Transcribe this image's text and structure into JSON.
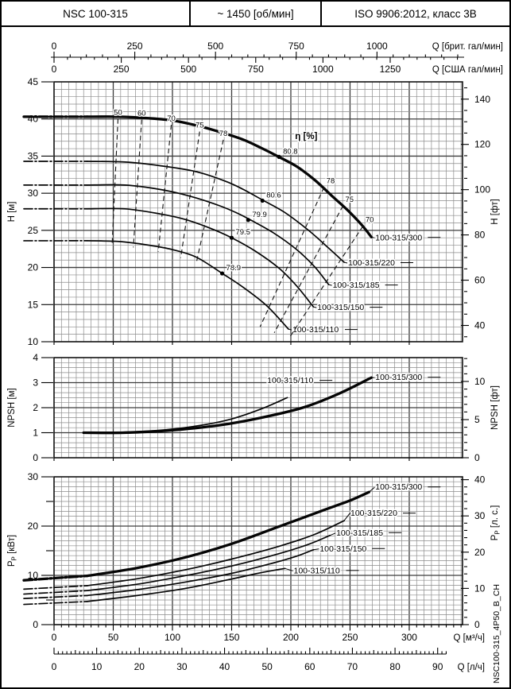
{
  "header": {
    "cells": [
      "NSC 100-315",
      "~ 1450 [об/мин]",
      "ISO 9906:2012, класс 3В"
    ]
  },
  "side_id": "NSC100-315_4P50_B_CH",
  "x_max_q": 345,
  "top_axes": [
    {
      "title": "Q [брит. гал/мин]",
      "q_per_unit": 0.272766,
      "major_step": 250,
      "major_max": 1000,
      "minor_step": 50
    },
    {
      "title": "Q [США гал/мин]",
      "q_per_unit": 0.227125,
      "major_step": 250,
      "major_max": 1250,
      "minor_step": 50
    }
  ],
  "bottom_axes": [
    {
      "title": "Q [м³/ч]",
      "q_per_unit": 1,
      "major_step": 50,
      "major_max": 300,
      "minor_step": 6.25
    },
    {
      "title": "Q [л/ч]",
      "q_per_unit": 3.6,
      "major_step": 10,
      "major_max": 90,
      "minor_step": 1
    }
  ],
  "chart_data": [
    {
      "id": "hq",
      "type": "line",
      "xlabel": "Q [м³/ч]",
      "y_left": {
        "title": "H [м]",
        "min": 10,
        "max": 45,
        "minor": 1,
        "major": 5
      },
      "y_right": {
        "title": "H [фт]",
        "unit": 0.3048,
        "major_min": 40,
        "major_max": 140,
        "major_step": 20,
        "minor_min": 35,
        "minor_max": 145,
        "minor_step": 5
      },
      "series": [
        {
          "name": "100-315/300",
          "thick": true,
          "head": 40.3,
          "label_offset": [
            5,
            4
          ],
          "points": [
            [
              28,
              40.3
            ],
            [
              55,
              40.3
            ],
            [
              80,
              40.1
            ],
            [
              100,
              39.8
            ],
            [
              121,
              39.1
            ],
            [
              141,
              38.2
            ],
            [
              160,
              37.2
            ],
            [
              175,
              36.1
            ],
            [
              191,
              34.8
            ],
            [
              205,
              33.6
            ],
            [
              220,
              31.8
            ],
            [
              235,
              29.6
            ],
            [
              248,
              27.7
            ],
            [
              260,
              25.7
            ],
            [
              268,
              24.1
            ]
          ]
        },
        {
          "name": "100-315/220",
          "thick": false,
          "head": 34.3,
          "label_offset": [
            5,
            4
          ],
          "points": [
            [
              28,
              34.3
            ],
            [
              60,
              34.2
            ],
            [
              90,
              33.7
            ],
            [
              120,
              32.9
            ],
            [
              145,
              31.6
            ],
            [
              160,
              30.5
            ],
            [
              176,
              29.1
            ],
            [
              195,
              27.4
            ],
            [
              215,
              25.0
            ],
            [
              232,
              22.6
            ],
            [
              245,
              20.7
            ]
          ]
        },
        {
          "name": "100-315/185",
          "thick": false,
          "head": 31.1,
          "label_offset": [
            5,
            4
          ],
          "points": [
            [
              28,
              31.1
            ],
            [
              60,
              31.1
            ],
            [
              90,
              30.5
            ],
            [
              115,
              29.6
            ],
            [
              140,
              28.3
            ],
            [
              155,
              27.3
            ],
            [
              166,
              26.4
            ],
            [
              185,
              24.7
            ],
            [
              205,
              22.4
            ],
            [
              220,
              20.1
            ],
            [
              232,
              17.7
            ]
          ]
        },
        {
          "name": "100-315/150",
          "thick": false,
          "head": 27.9,
          "label_offset": [
            5,
            4
          ],
          "points": [
            [
              28,
              27.9
            ],
            [
              60,
              27.9
            ],
            [
              90,
              27.2
            ],
            [
              110,
              26.5
            ],
            [
              130,
              25.4
            ],
            [
              150,
              24.0
            ],
            [
              170,
              22.2
            ],
            [
              190,
              19.9
            ],
            [
              205,
              17.5
            ],
            [
              219,
              14.7
            ]
          ]
        },
        {
          "name": "100-315/110",
          "thick": false,
          "head": 23.6,
          "label_offset": [
            5,
            4
          ],
          "points": [
            [
              28,
              23.6
            ],
            [
              55,
              23.5
            ],
            [
              80,
              23.0
            ],
            [
              100,
              22.4
            ],
            [
              120,
              21.4
            ],
            [
              142,
              19.2
            ],
            [
              160,
              17.3
            ],
            [
              180,
              14.8
            ],
            [
              198,
              11.7
            ]
          ]
        }
      ],
      "efficiency": {
        "title": "η [%]",
        "title_pos": [
          213,
          37.3
        ],
        "iso_lines": [
          {
            "label": "50",
            "from": [
              54,
              40.0
            ],
            "to": [
              49,
              22.9
            ],
            "side": "left"
          },
          {
            "label": "60",
            "from": [
              74,
              39.9
            ],
            "to": [
              67,
              22.7
            ],
            "side": "left"
          },
          {
            "label": "70",
            "from": [
              99,
              39.2
            ],
            "to": [
              88,
              22.1
            ],
            "side": "left"
          },
          {
            "label": "75",
            "from": [
              123,
              38.3
            ],
            "to": [
              107,
              21.3
            ],
            "side": "left"
          },
          {
            "label": "78",
            "from": [
              143,
              37.2
            ],
            "to": [
              120,
              20.5
            ],
            "side": "left"
          },
          {
            "label": "78",
            "from": [
              228,
              30.8
            ],
            "to": [
              174,
              12.0
            ],
            "side": "right"
          },
          {
            "label": "75",
            "from": [
              244,
              28.3
            ],
            "to": [
              186,
              11.2
            ],
            "side": "right"
          },
          {
            "label": "70",
            "from": [
              261,
              25.6
            ],
            "to": [
              199,
              10.6
            ],
            "side": "right"
          }
        ],
        "bep_points": [
          {
            "label": "80.8",
            "q": 190,
            "h": 34.9
          },
          {
            "label": "80.6",
            "q": 176,
            "h": 29.0
          },
          {
            "label": "79.9",
            "q": 164,
            "h": 26.4
          },
          {
            "label": "79.5",
            "q": 150,
            "h": 24.0
          },
          {
            "label": "78.9",
            "q": 142,
            "h": 19.2
          }
        ]
      }
    },
    {
      "id": "npsh",
      "type": "line",
      "xlabel": "Q [м³/ч]",
      "y_left": {
        "title": "NPSH [м]",
        "min": 0,
        "max": 4,
        "minor": 0.2,
        "major": 1
      },
      "y_right": {
        "title": "NPSH [фт]",
        "unit": 0.3048,
        "major_min": 0,
        "major_max": 10,
        "major_step": 5,
        "minor_min": 0,
        "minor_max": 13,
        "minor_step": 1
      },
      "series": [
        {
          "name": "100-315/300",
          "thick": true,
          "label_offset": [
            5,
            3
          ],
          "points": [
            [
              25,
              1.0
            ],
            [
              60,
              1.0
            ],
            [
              100,
              1.1
            ],
            [
              140,
              1.3
            ],
            [
              175,
              1.6
            ],
            [
              210,
              2.0
            ],
            [
              240,
              2.55
            ],
            [
              268,
              3.2
            ]
          ]
        },
        {
          "name": "100-315/110",
          "thick": false,
          "label_pos": [
            180,
            2.98
          ],
          "points": [
            [
              25,
              1.02
            ],
            [
              60,
              1.03
            ],
            [
              95,
              1.12
            ],
            [
              125,
              1.3
            ],
            [
              150,
              1.55
            ],
            [
              175,
              1.95
            ],
            [
              197,
              2.4
            ]
          ]
        }
      ]
    },
    {
      "id": "power",
      "type": "line",
      "xlabel": "Q [м³/ч]",
      "y_left": {
        "title_main": "P",
        "title_sub": "P",
        "title_rest": " [кВт]",
        "min": 0,
        "max": 30,
        "minor": 1,
        "major": 10
      },
      "y_right": {
        "title_main": "P",
        "title_sub": "P",
        "title_rest": " [л. с.]",
        "unit": 0.7355,
        "major_min": 0,
        "major_max": 40,
        "major_step": 10,
        "minor_min": 0,
        "minor_max": 40,
        "minor_step": 2,
        "title_dy": -35
      },
      "series": [
        {
          "name": "100-315/300",
          "thick": true,
          "head": 9.0,
          "label_offset": [
            8,
            -3
          ],
          "points": [
            [
              28,
              9.9
            ],
            [
              70,
              11.5
            ],
            [
              110,
              13.6
            ],
            [
              150,
              16.4
            ],
            [
              190,
              19.9
            ],
            [
              225,
              23.0
            ],
            [
              250,
              25.2
            ],
            [
              266,
              26.9
            ]
          ]
        },
        {
          "name": "100-315/220",
          "thick": false,
          "head": 7.2,
          "label_offset": [
            8,
            -6
          ],
          "points": [
            [
              28,
              7.9
            ],
            [
              70,
              9.3
            ],
            [
              110,
              11.1
            ],
            [
              150,
              13.3
            ],
            [
              190,
              15.9
            ],
            [
              220,
              18.3
            ],
            [
              245,
              21.1
            ]
          ]
        },
        {
          "name": "100-315/185",
          "thick": false,
          "head": 6.2,
          "label_offset": [
            8,
            0
          ],
          "points": [
            [
              28,
              6.9
            ],
            [
              70,
              8.2
            ],
            [
              110,
              9.9
            ],
            [
              150,
              11.9
            ],
            [
              190,
              14.4
            ],
            [
              215,
              16.3
            ],
            [
              233,
              18.1
            ]
          ]
        },
        {
          "name": "100-315/150",
          "thick": false,
          "head": 5.3,
          "label_offset": [
            8,
            2
          ],
          "points": [
            [
              28,
              5.9
            ],
            [
              70,
              7.1
            ],
            [
              110,
              8.6
            ],
            [
              150,
              10.4
            ],
            [
              185,
              12.5
            ],
            [
              205,
              13.9
            ],
            [
              219,
              15.2
            ]
          ]
        },
        {
          "name": "100-315/110",
          "thick": false,
          "head": 4.1,
          "label_offset": [
            11,
            6
          ],
          "points": [
            [
              28,
              4.7
            ],
            [
              70,
              5.9
            ],
            [
              110,
              7.3
            ],
            [
              145,
              9.0
            ],
            [
              170,
              10.3
            ],
            [
              185,
              11.0
            ],
            [
              195,
              11.4
            ]
          ]
        }
      ]
    }
  ]
}
